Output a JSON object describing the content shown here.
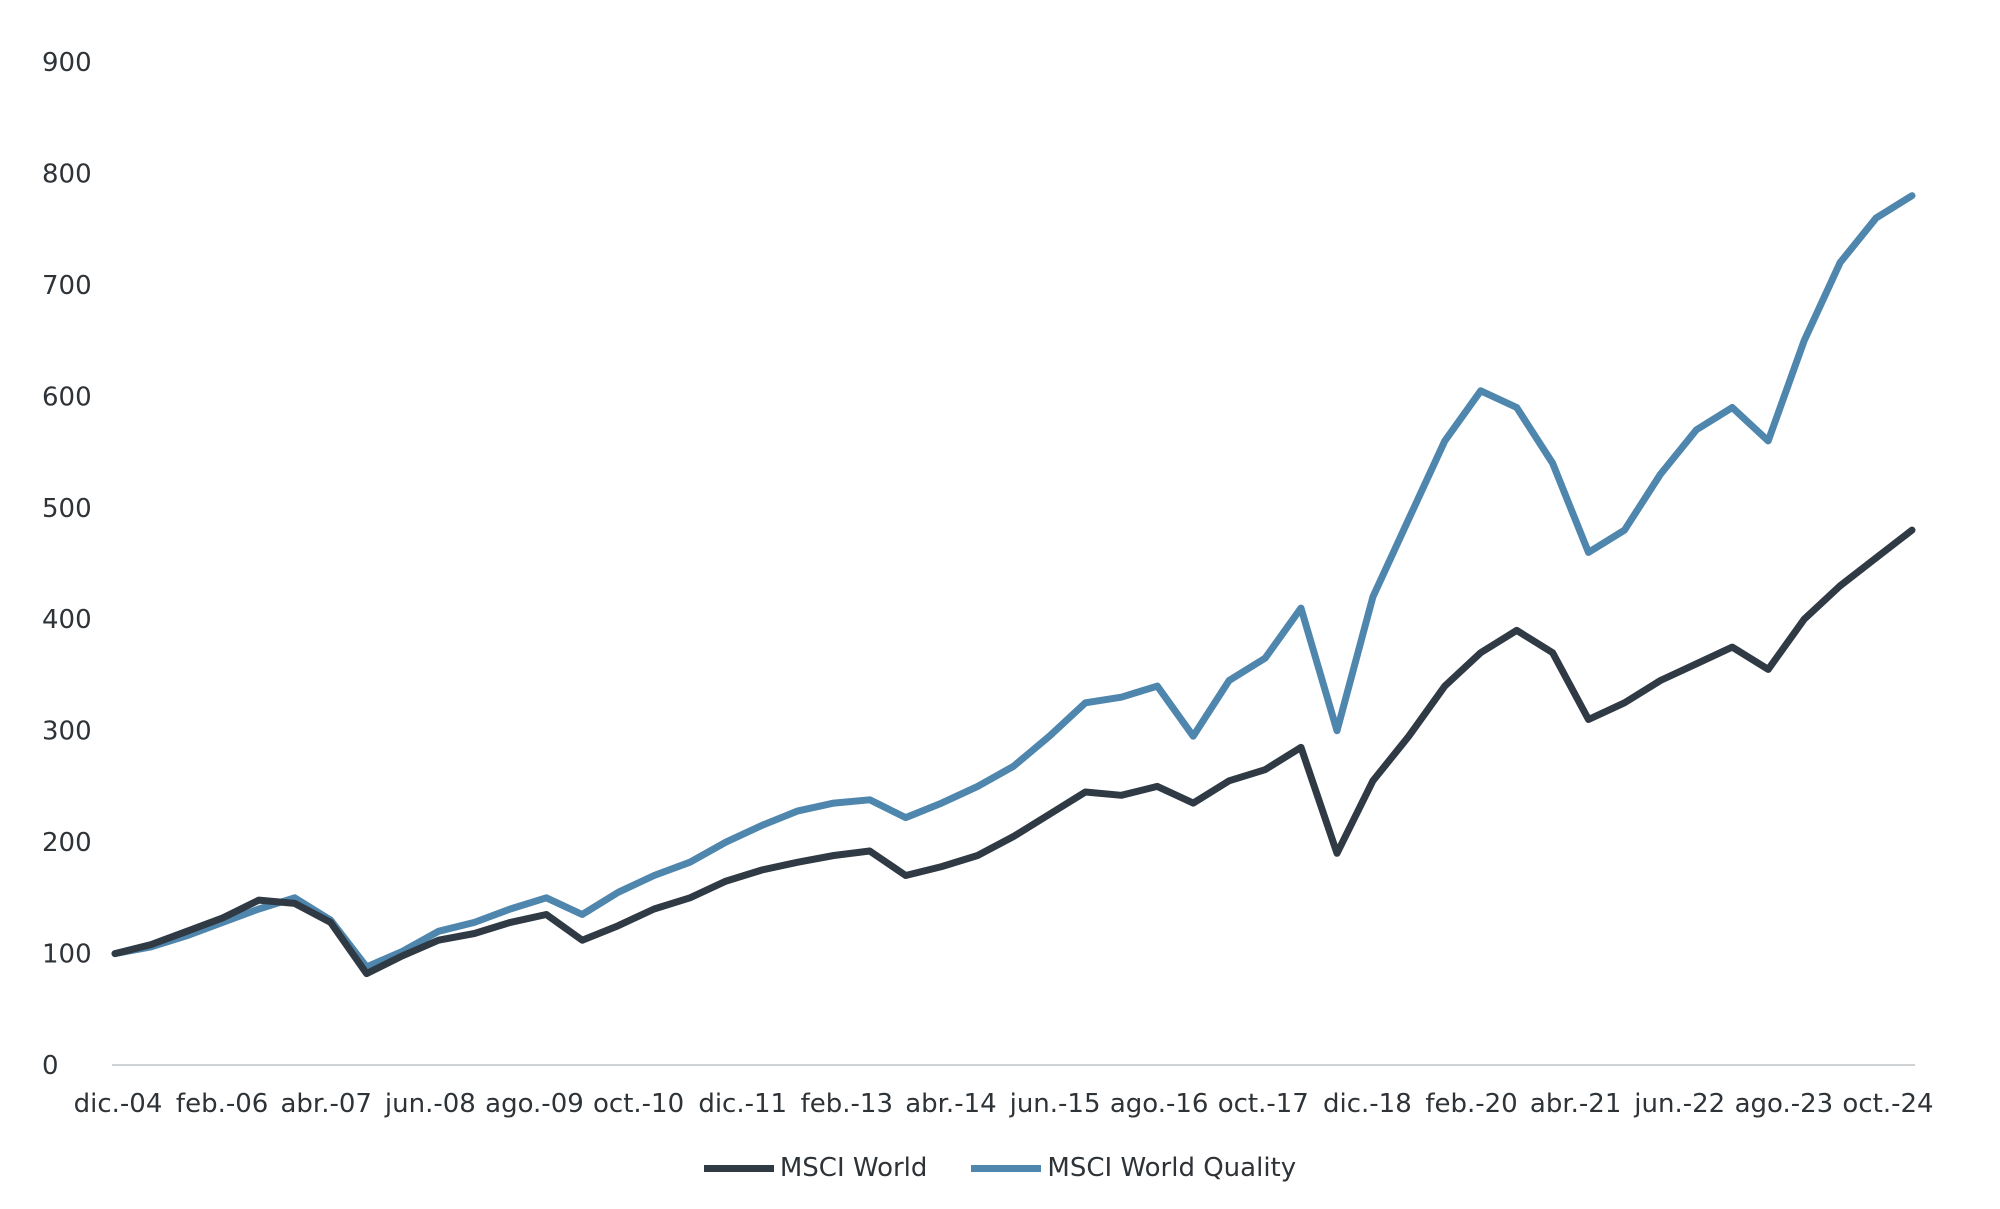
{
  "chart_data": {
    "type": "line",
    "title": "",
    "xlabel": "",
    "ylabel": "",
    "ylim": [
      0,
      900
    ],
    "yticks": [
      "0",
      "100",
      "200",
      "300",
      "400",
      "500",
      "600",
      "700",
      "800",
      "900"
    ],
    "x_tick_labels": [
      "dic.-04",
      "feb.-06",
      "abr.-07",
      "jun.-08",
      "ago.-09",
      "oct.-10",
      "dic.-11",
      "feb.-13",
      "abr.-14",
      "jun.-15",
      "ago.-16",
      "oct.-17",
      "dic.-18",
      "feb.-20",
      "abr.-21",
      "jun.-22",
      "ago.-23",
      "oct.-24"
    ],
    "grid": false,
    "legend_position": "bottom-center",
    "series": [
      {
        "name": "MSCI World",
        "color": "#2f3a45",
        "values": [
          100,
          108,
          120,
          132,
          148,
          145,
          128,
          82,
          98,
          112,
          118,
          128,
          135,
          112,
          125,
          140,
          150,
          165,
          175,
          182,
          188,
          192,
          170,
          178,
          188,
          205,
          225,
          245,
          242,
          250,
          235,
          255,
          265,
          285,
          190,
          255,
          295,
          340,
          370,
          390,
          370,
          310,
          325,
          345,
          360,
          375,
          355,
          400,
          430,
          455,
          480
        ]
      },
      {
        "name": "MSCI World Quality",
        "color": "#4f86ad",
        "values": [
          100,
          106,
          116,
          128,
          140,
          150,
          130,
          88,
          102,
          120,
          128,
          140,
          150,
          135,
          155,
          170,
          182,
          200,
          215,
          228,
          235,
          238,
          222,
          235,
          250,
          268,
          295,
          325,
          330,
          340,
          295,
          345,
          365,
          410,
          300,
          420,
          490,
          560,
          605,
          590,
          540,
          460,
          480,
          530,
          570,
          590,
          560,
          650,
          720,
          760,
          780
        ]
      }
    ]
  },
  "legend": {
    "items": [
      {
        "label": "MSCI World",
        "color": "#2f3a45"
      },
      {
        "label": "MSCI World Quality",
        "color": "#4f86ad"
      }
    ]
  }
}
